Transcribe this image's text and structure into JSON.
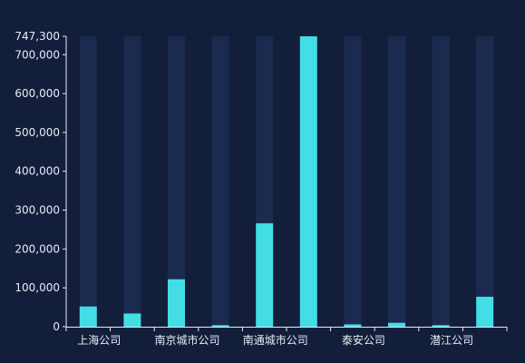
{
  "chart_data": {
    "type": "bar",
    "categories": [
      "上海公司",
      "",
      "南京城市公司",
      "",
      "南通城市公司",
      "",
      "泰安公司",
      "",
      "潜江公司",
      ""
    ],
    "values": [
      52000,
      34000,
      122000,
      4000,
      266000,
      747300,
      6000,
      10000,
      4000,
      77000
    ],
    "ylim": [
      0,
      747300
    ],
    "yticks": [
      "0",
      "100,000",
      "200,000",
      "300,000",
      "400,000",
      "500,000",
      "600,000",
      "700,000",
      "747,300"
    ],
    "ytick_values": [
      0,
      100000,
      200000,
      300000,
      400000,
      500000,
      600000,
      700000,
      747300
    ],
    "grid": false,
    "colors": {
      "background": "#131e3a",
      "bar": "#43dde6",
      "bar_background": "#1a2b4f",
      "axis": "#e6ecf8",
      "tick_text": "#e6ecf8"
    }
  }
}
